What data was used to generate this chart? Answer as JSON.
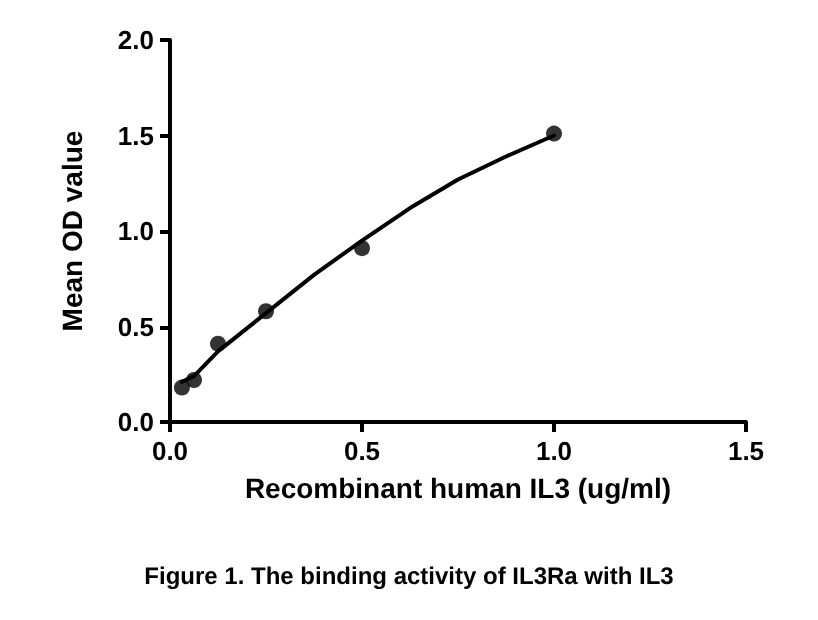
{
  "chart_data": {
    "type": "scatter",
    "xlabel": "Recombinant human IL3 (ug/ml)",
    "ylabel": "Mean OD value",
    "annotations": [
      "Figure 1. The binding activity of IL3Ra with IL3"
    ],
    "xlim": [
      0,
      1.5
    ],
    "xticks": [
      {
        "value": 0,
        "label": "0.0"
      },
      {
        "value": 0.5,
        "label": "0.5"
      },
      {
        "value": 1,
        "label": "1.0"
      },
      {
        "value": 1.5,
        "label": "1.5"
      }
    ],
    "ylim": [
      0,
      2
    ],
    "yticks": [
      {
        "value": 0,
        "label": "0.0"
      },
      {
        "value": 0.5,
        "label": "0.5"
      },
      {
        "value": 1,
        "label": "1.0"
      },
      {
        "value": 1.5,
        "label": "1.5"
      },
      {
        "value": 2,
        "label": "2.0"
      }
    ],
    "series": [
      {
        "color": "#000000",
        "marker": "circle",
        "x": [
          0.031,
          0.0625,
          0.125,
          0.25,
          0.5,
          1.0
        ],
        "values": [
          0.18,
          0.22,
          0.41,
          0.58,
          0.91,
          1.51
        ]
      },
      {
        "type": "line",
        "color": "#000000",
        "marker": "none",
        "line_style": "solid",
        "x": [
          0.031,
          0.0625,
          0.125,
          0.25,
          0.375,
          0.5,
          0.625,
          0.75,
          0.875,
          1.0
        ],
        "values": [
          0.21,
          0.24,
          0.37,
          0.57,
          0.77,
          0.95,
          1.12,
          1.27,
          1.39,
          1.5
        ]
      }
    ]
  }
}
